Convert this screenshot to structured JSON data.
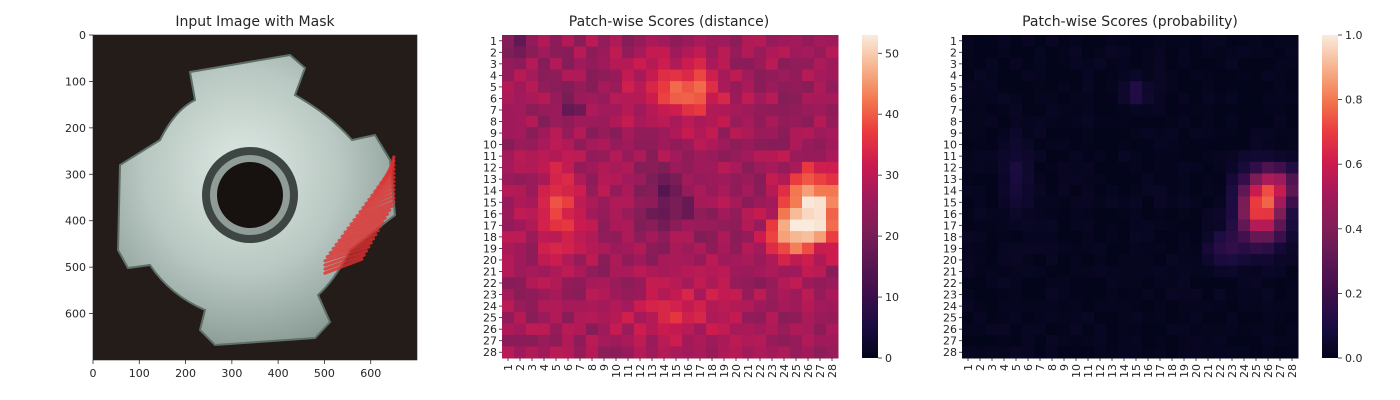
{
  "chart_data": [
    {
      "type": "image",
      "title": "Input Image with Mask",
      "xlim": [
        0,
        700
      ],
      "ylim": [
        700,
        0
      ],
      "xticks": [
        "0",
        "100",
        "200",
        "300",
        "400",
        "500",
        "600"
      ],
      "yticks": [
        "0",
        "100",
        "200",
        "300",
        "400",
        "500",
        "600"
      ],
      "overlay": {
        "label": "mask",
        "color": "#e03131",
        "region_x": [
          510,
          650
        ],
        "region_y": [
          280,
          500
        ]
      }
    },
    {
      "type": "heatmap",
      "title": "Patch-wise Scores (distance)",
      "rows": [
        "1",
        "2",
        "3",
        "4",
        "5",
        "6",
        "7",
        "8",
        "9",
        "10",
        "11",
        "12",
        "13",
        "14",
        "15",
        "16",
        "17",
        "18",
        "19",
        "20",
        "21",
        "22",
        "23",
        "24",
        "25",
        "26",
        "27",
        "28"
      ],
      "cols": [
        "1",
        "2",
        "3",
        "4",
        "5",
        "6",
        "7",
        "8",
        "9",
        "10",
        "11",
        "12",
        "13",
        "14",
        "15",
        "16",
        "17",
        "18",
        "19",
        "20",
        "21",
        "22",
        "23",
        "24",
        "25",
        "26",
        "27",
        "28"
      ],
      "colorbar": {
        "min": 0,
        "max": 53,
        "ticks": [
          "0",
          "10",
          "20",
          "30",
          "40",
          "50"
        ]
      },
      "model": {
        "base": 26,
        "noise": 4,
        "blobs": [
          {
            "row": 5.5,
            "col": 15.5,
            "peak": 14,
            "radius_rows": 2.5,
            "radius_cols": 3.5
          },
          {
            "row": 15.5,
            "col": 5,
            "peak": 12,
            "radius_rows": 3.5,
            "radius_cols": 1.8
          },
          {
            "row": 15.5,
            "col": 26.5,
            "peak": 27,
            "radius_rows": 3.0,
            "radius_cols": 2.2
          },
          {
            "row": 18,
            "col": 24.5,
            "peak": 16,
            "radius_rows": 2.0,
            "radius_cols": 2.0
          },
          {
            "row": 24.5,
            "col": 15,
            "peak": 8,
            "radius_rows": 2.5,
            "radius_cols": 4.0
          },
          {
            "row": 15,
            "col": 14.5,
            "peak": -10,
            "radius_rows": 2.2,
            "radius_cols": 2.2
          },
          {
            "row": 7,
            "col": 6,
            "peak": -6,
            "radius_rows": 1.5,
            "radius_cols": 1.5
          },
          {
            "row": 1.5,
            "col": 1.5,
            "peak": -8,
            "radius_rows": 1.2,
            "radius_cols": 1.2
          }
        ]
      }
    },
    {
      "type": "heatmap",
      "title": "Patch-wise Scores (probability)",
      "rows": [
        "1",
        "2",
        "3",
        "4",
        "5",
        "6",
        "7",
        "8",
        "9",
        "10",
        "11",
        "12",
        "13",
        "14",
        "15",
        "16",
        "17",
        "18",
        "19",
        "20",
        "21",
        "22",
        "23",
        "24",
        "25",
        "26",
        "27",
        "28"
      ],
      "cols": [
        "1",
        "2",
        "3",
        "4",
        "5",
        "6",
        "7",
        "8",
        "9",
        "10",
        "11",
        "12",
        "13",
        "14",
        "15",
        "16",
        "17",
        "18",
        "19",
        "20",
        "21",
        "22",
        "23",
        "24",
        "25",
        "26",
        "27",
        "28"
      ],
      "colorbar": {
        "min": 0,
        "max": 1,
        "ticks": [
          "0.0",
          "0.2",
          "0.4",
          "0.6",
          "0.8",
          "1.0"
        ]
      },
      "model": {
        "base": 0.01,
        "noise": 0.015,
        "blobs": [
          {
            "row": 15.5,
            "col": 25.5,
            "peak": 0.75,
            "radius_rows": 2.8,
            "radius_cols": 1.8
          },
          {
            "row": 13.5,
            "col": 27,
            "peak": 0.35,
            "radius_rows": 1.5,
            "radius_cols": 1.5
          },
          {
            "row": 19,
            "col": 22.5,
            "peak": 0.15,
            "radius_rows": 1.5,
            "radius_cols": 1.5
          },
          {
            "row": 5.5,
            "col": 15,
            "peak": 0.12,
            "radius_rows": 1.2,
            "radius_cols": 1.0
          },
          {
            "row": 13,
            "col": 5,
            "peak": 0.08,
            "radius_rows": 3.0,
            "radius_cols": 1.2
          }
        ]
      }
    }
  ]
}
